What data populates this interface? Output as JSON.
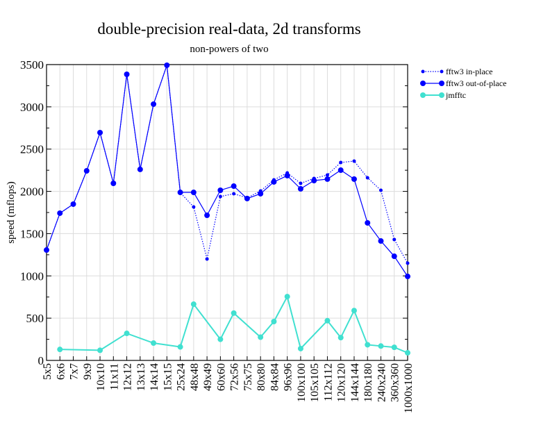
{
  "chart_data": {
    "type": "line",
    "title": "double-precision real-data, 2d transforms",
    "subtitle": "non-powers of two",
    "xlabel": "",
    "ylabel": "speed (mflops)",
    "ylim": [
      0,
      3500
    ],
    "yticks": [
      0,
      500,
      1000,
      1500,
      2000,
      2500,
      3000,
      3500
    ],
    "grid": true,
    "legend": "top-right, outside plot",
    "categories": [
      "5x5",
      "6x6",
      "7x7",
      "9x9",
      "10x10",
      "11x11",
      "12x12",
      "13x13",
      "14x14",
      "15x15",
      "25x24",
      "48x48",
      "49x49",
      "60x60",
      "72x56",
      "75x75",
      "80x80",
      "84x84",
      "96x96",
      "100x100",
      "105x105",
      "112x112",
      "120x120",
      "144x144",
      "180x180",
      "240x240",
      "360x360",
      "1000x1000"
    ],
    "series": [
      {
        "name": "fftw3 in-place",
        "color": "#0000ff",
        "style": "dotted",
        "marker": "small",
        "values": [
          1306,
          1742,
          1849,
          2243,
          2695,
          2095,
          3385,
          2260,
          3032,
          3492,
          1985,
          1816,
          1200,
          1939,
          1972,
          1923,
          2005,
          2136,
          2218,
          2095,
          2153,
          2194,
          2342,
          2358,
          2161,
          2013,
          1430,
          1150
        ]
      },
      {
        "name": "fftw3 out-of-place",
        "color": "#0000ff",
        "style": "solid",
        "marker": "large",
        "values": [
          1306,
          1742,
          1849,
          2243,
          2695,
          2095,
          3385,
          2260,
          3032,
          3492,
          1988,
          1988,
          1717,
          2013,
          2062,
          1915,
          1972,
          2112,
          2186,
          2030,
          2128,
          2145,
          2251,
          2145,
          1627,
          1413,
          1232,
          994
        ]
      },
      {
        "name": "jmfftc",
        "color": "#40e0d0",
        "style": "solid",
        "marker": "large",
        "values": [
          null,
          130,
          null,
          null,
          120,
          null,
          320,
          null,
          205,
          null,
          160,
          665,
          null,
          250,
          560,
          null,
          275,
          460,
          755,
          140,
          null,
          470,
          270,
          590,
          185,
          170,
          155,
          90
        ]
      }
    ]
  }
}
